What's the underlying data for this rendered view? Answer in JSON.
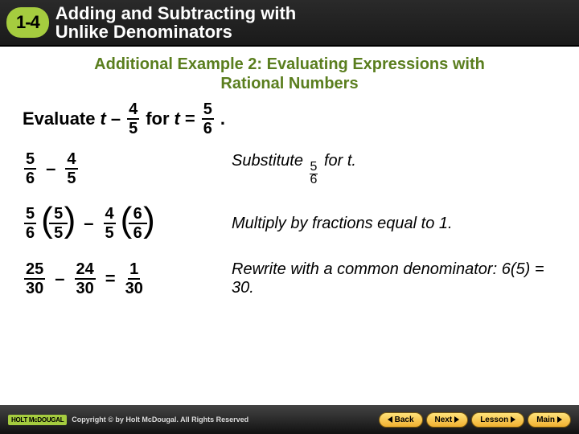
{
  "header": {
    "lesson_number": "1-4",
    "title_line1": "Adding and Subtracting with",
    "title_line2": "Unlike Denominators"
  },
  "subtitle_line1": "Additional Example 2: Evaluating Expressions with",
  "subtitle_line2": "Rational Numbers",
  "problem": {
    "prefix": "Evaluate ",
    "var": "t",
    "op": " – ",
    "frac1": {
      "num": "4",
      "den": "5"
    },
    "mid": "  for ",
    "eq": " = ",
    "frac2": {
      "num": "5",
      "den": "6"
    },
    "suffix": " ."
  },
  "steps": [
    {
      "lhs": {
        "parts": [
          {
            "type": "frac",
            "num": "5",
            "den": "6"
          },
          {
            "type": "op",
            "text": "–"
          },
          {
            "type": "frac",
            "num": "4",
            "den": "5"
          }
        ]
      },
      "rhs_pre": "Substitute ",
      "rhs_frac": {
        "num": "5",
        "den": "6"
      },
      "rhs_post": " for t."
    },
    {
      "lhs": {
        "parts": [
          {
            "type": "frac",
            "num": "5",
            "den": "6"
          },
          {
            "type": "pfrac",
            "num": "5",
            "den": "5"
          },
          {
            "type": "op",
            "text": "–"
          },
          {
            "type": "frac",
            "num": "4",
            "den": "5"
          },
          {
            "type": "pfrac",
            "num": "6",
            "den": "6"
          }
        ]
      },
      "rhs_pre": "Multiply by fractions equal to 1.",
      "rhs_frac": null,
      "rhs_post": ""
    },
    {
      "lhs": {
        "parts": [
          {
            "type": "frac",
            "num": "25",
            "den": "30"
          },
          {
            "type": "op",
            "text": "–"
          },
          {
            "type": "frac",
            "num": "24",
            "den": "30"
          },
          {
            "type": "op",
            "text": "="
          },
          {
            "type": "frac",
            "num": "1",
            "den": "30"
          }
        ]
      },
      "rhs_pre": "Rewrite with a common denominator: 6(5) = 30.",
      "rhs_frac": null,
      "rhs_post": ""
    }
  ],
  "footer": {
    "brand": "HOLT McDOUGAL",
    "copyright": "Copyright © by Holt McDougal. All Rights Reserved",
    "nav": {
      "back": "Back",
      "next": "Next",
      "lesson": "Lesson",
      "main": "Main"
    }
  },
  "colors": {
    "accent_green": "#5a7e1e",
    "tag_green": "#a5cc3f",
    "header_bg": "#1a1a1a",
    "button_gold": "#f0b030"
  }
}
